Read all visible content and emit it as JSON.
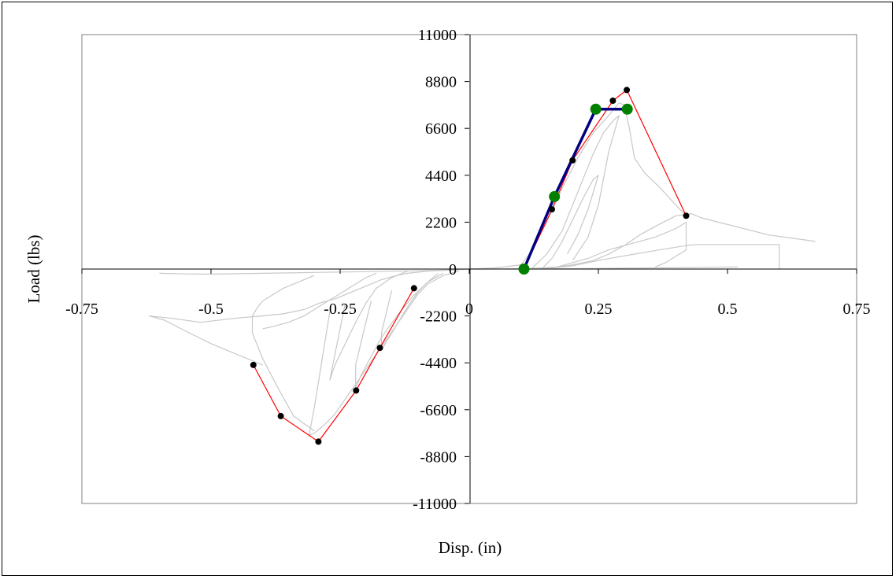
{
  "chart_data": {
    "type": "scatter",
    "title": "",
    "xlabel": "Disp. (in)",
    "ylabel": "Load (lbs)",
    "xlim": [
      -0.75,
      0.75
    ],
    "ylim": [
      -11000,
      11000
    ],
    "xticks": [
      -0.75,
      -0.5,
      -0.25,
      0,
      0.25,
      0.5,
      0.75
    ],
    "xtick_labels": [
      "-0.75",
      "-0.5",
      "-0.25",
      "0",
      "0.25",
      "0.5",
      "0.75"
    ],
    "yticks": [
      11000,
      8800,
      6600,
      4400,
      2200,
      0,
      -2200,
      -4400,
      -6600,
      -8800,
      -11000
    ],
    "ytick_labels": [
      "11000",
      "8800",
      "6600",
      "4400",
      "2200",
      "0",
      "-2200",
      "-4400",
      "-6600",
      "-8800",
      "-11000"
    ],
    "grid": false,
    "legend": "none",
    "colors": {
      "hysteresis": "#c8c8c8",
      "envelope": "#ff0000",
      "envelope_points": "#000000",
      "bilinear": "#000080",
      "bilinear_points": "#008000"
    },
    "series": [
      {
        "style": "line-gray",
        "x": [
          0.67,
          0.58,
          0.45,
          0.43,
          0.4,
          0.36,
          0.33,
          0.3,
          0.27,
          0.24,
          0.2,
          0.17,
          0.14,
          0.12,
          0.1,
          0.08,
          0.04,
          0.0,
          -0.04,
          -0.08,
          -0.12,
          -0.14,
          -0.17,
          -0.2,
          -0.23,
          -0.26,
          -0.29,
          -0.32,
          -0.36,
          -0.4,
          -0.45,
          -0.52,
          -0.58,
          -0.62,
          -0.59,
          -0.55,
          -0.5,
          -0.46,
          -0.42,
          -0.4
        ],
        "y": [
          1300,
          1600,
          2400,
          2600,
          2500,
          2000,
          1600,
          1100,
          700,
          400,
          200,
          100,
          50,
          30,
          20,
          10,
          5,
          0,
          -50,
          -100,
          -200,
          -300,
          -500,
          -800,
          -1100,
          -1400,
          -1600,
          -1900,
          -2100,
          -2200,
          -2300,
          -2500,
          -2300,
          -2200,
          -2400,
          -2900,
          -3500,
          -3900,
          -4300,
          -4500
        ]
      },
      {
        "style": "line-gray",
        "x": [
          0.0,
          0.05,
          0.1,
          0.12,
          0.15,
          0.18,
          0.21,
          0.24,
          0.27,
          0.29,
          0.3,
          0.31,
          0.32,
          0.34,
          0.37,
          0.4,
          0.42
        ],
        "y": [
          0,
          50,
          200,
          800,
          2200,
          3800,
          5200,
          6400,
          7200,
          7800,
          7700,
          6600,
          5200,
          4500,
          3800,
          3000,
          2500
        ]
      },
      {
        "style": "line-gray",
        "x": [
          0.14,
          0.17,
          0.2,
          0.23,
          0.25,
          0.27,
          0.3,
          0.33,
          0.36,
          0.38,
          0.4,
          0.42,
          0.42,
          0.4,
          0.38,
          0.36
        ],
        "y": [
          0,
          100,
          300,
          500,
          700,
          900,
          1100,
          1300,
          1500,
          1700,
          1900,
          2200,
          900,
          600,
          300,
          100
        ]
      },
      {
        "style": "line-gray",
        "x": [
          0.14,
          0.2,
          0.26,
          0.32,
          0.38,
          0.42,
          0.44,
          0.5,
          0.56,
          0.6,
          0.6
        ],
        "y": [
          0,
          150,
          450,
          700,
          950,
          1100,
          1150,
          1150,
          1150,
          1150,
          0
        ]
      },
      {
        "style": "line-gray",
        "x": [
          0.12,
          0.15,
          0.18,
          0.2,
          0.22,
          0.24,
          0.26,
          0.28,
          0.29,
          0.27,
          0.25,
          0.23,
          0.2
        ],
        "y": [
          0,
          700,
          1800,
          3000,
          4200,
          5400,
          6400,
          7000,
          7200,
          5500,
          3000,
          1500,
          400
        ]
      },
      {
        "style": "line-gray",
        "x": [
          0.14,
          0.16,
          0.18,
          0.2,
          0.22,
          0.24,
          0.25,
          0.23,
          0.21,
          0.19
        ],
        "y": [
          0,
          500,
          1300,
          2300,
          3300,
          4200,
          4400,
          2800,
          1600,
          700
        ]
      },
      {
        "style": "line-gray",
        "x": [
          -0.02,
          -0.05,
          -0.08,
          -0.1,
          -0.12,
          -0.14,
          -0.16,
          -0.18,
          -0.2,
          -0.22,
          -0.24,
          -0.26,
          -0.28,
          -0.3,
          -0.31,
          -0.3,
          -0.29,
          -0.28,
          -0.27
        ],
        "y": [
          -100,
          -300,
          -700,
          -1200,
          -1900,
          -2600,
          -3300,
          -4000,
          -4700,
          -5400,
          -6100,
          -6800,
          -7300,
          -7700,
          -7800,
          -6500,
          -5000,
          -3500,
          -2000
        ]
      },
      {
        "style": "line-gray",
        "x": [
          -0.05,
          -0.08,
          -0.11,
          -0.14,
          -0.17,
          -0.19,
          -0.21,
          -0.22,
          -0.22,
          -0.21,
          -0.2,
          -0.19
        ],
        "y": [
          -200,
          -600,
          -1300,
          -2200,
          -3200,
          -4100,
          -5000,
          -5600,
          -4500,
          -3500,
          -2500,
          -1500
        ]
      },
      {
        "style": "line-gray",
        "x": [
          -0.06,
          -0.08,
          -0.1,
          -0.12,
          -0.14,
          -0.16,
          -0.17,
          -0.17,
          -0.16,
          -0.15
        ],
        "y": [
          -200,
          -600,
          -1100,
          -1800,
          -2600,
          -3400,
          -3800,
          -3000,
          -2000,
          -1000
        ]
      },
      {
        "style": "line-gray",
        "x": [
          -0.3,
          -0.33,
          -0.36,
          -0.38,
          -0.4,
          -0.41,
          -0.42,
          -0.42,
          -0.4,
          -0.37,
          -0.34,
          -0.3
        ],
        "y": [
          -300,
          -600,
          -900,
          -1200,
          -1500,
          -1800,
          -2200,
          -3000,
          -4200,
          -5600,
          -6900,
          -7600
        ]
      },
      {
        "style": "line-gray",
        "x": [
          -0.18,
          -0.2,
          -0.22,
          -0.24,
          -0.26,
          -0.28,
          -0.3,
          -0.32,
          -0.35,
          -0.38,
          -0.4
        ],
        "y": [
          -200,
          -400,
          -700,
          -1000,
          -1300,
          -1600,
          -1900,
          -2200,
          -2500,
          -2700,
          -2800
        ]
      },
      {
        "style": "line-gray",
        "x": [
          -0.02,
          -0.1,
          -0.2,
          -0.3,
          -0.4,
          -0.5,
          -0.55,
          -0.6
        ],
        "y": [
          -30,
          -80,
          -120,
          -160,
          -200,
          -240,
          -230,
          -200
        ]
      },
      {
        "style": "line-gray",
        "x": [
          -0.12,
          -0.15,
          -0.18,
          -0.2,
          -0.22,
          -0.24,
          -0.26,
          -0.27,
          -0.26,
          -0.25,
          -0.24
        ],
        "y": [
          -100,
          -400,
          -900,
          -1600,
          -2500,
          -3500,
          -4500,
          -5200,
          -4000,
          -2800,
          -1600
        ]
      },
      {
        "style": "line-gray",
        "x": [
          0.1,
          0.2,
          0.3,
          0.38,
          0.45,
          0.52
        ],
        "y": [
          0,
          20,
          40,
          60,
          80,
          100
        ]
      },
      {
        "style": "line-red",
        "x": [
          0.106,
          0.16,
          0.2,
          0.278,
          0.305,
          0.42
        ],
        "y": [
          0,
          2800,
          5100,
          7900,
          8400,
          2500
        ]
      },
      {
        "style": "line-red",
        "x": [
          -0.107,
          -0.173,
          -0.219,
          -0.292,
          -0.365,
          -0.418
        ],
        "y": [
          -900,
          -3700,
          -5700,
          -8100,
          -6900,
          -4500
        ]
      },
      {
        "style": "points-black",
        "x": [
          0.106,
          0.16,
          0.2,
          0.278,
          0.305,
          0.42,
          -0.107,
          -0.173,
          -0.219,
          -0.292,
          -0.365,
          -0.418
        ],
        "y": [
          0,
          2800,
          5100,
          7900,
          8400,
          2500,
          -900,
          -3700,
          -5700,
          -8100,
          -6900,
          -4500
        ]
      },
      {
        "style": "line-blue",
        "x": [
          0.106,
          0.165,
          0.245,
          0.306
        ],
        "y": [
          0,
          3400,
          7500,
          7500
        ]
      },
      {
        "style": "points-green",
        "x": [
          0.106,
          0.165,
          0.245,
          0.306
        ],
        "y": [
          0,
          3400,
          7500,
          7500
        ]
      }
    ]
  }
}
